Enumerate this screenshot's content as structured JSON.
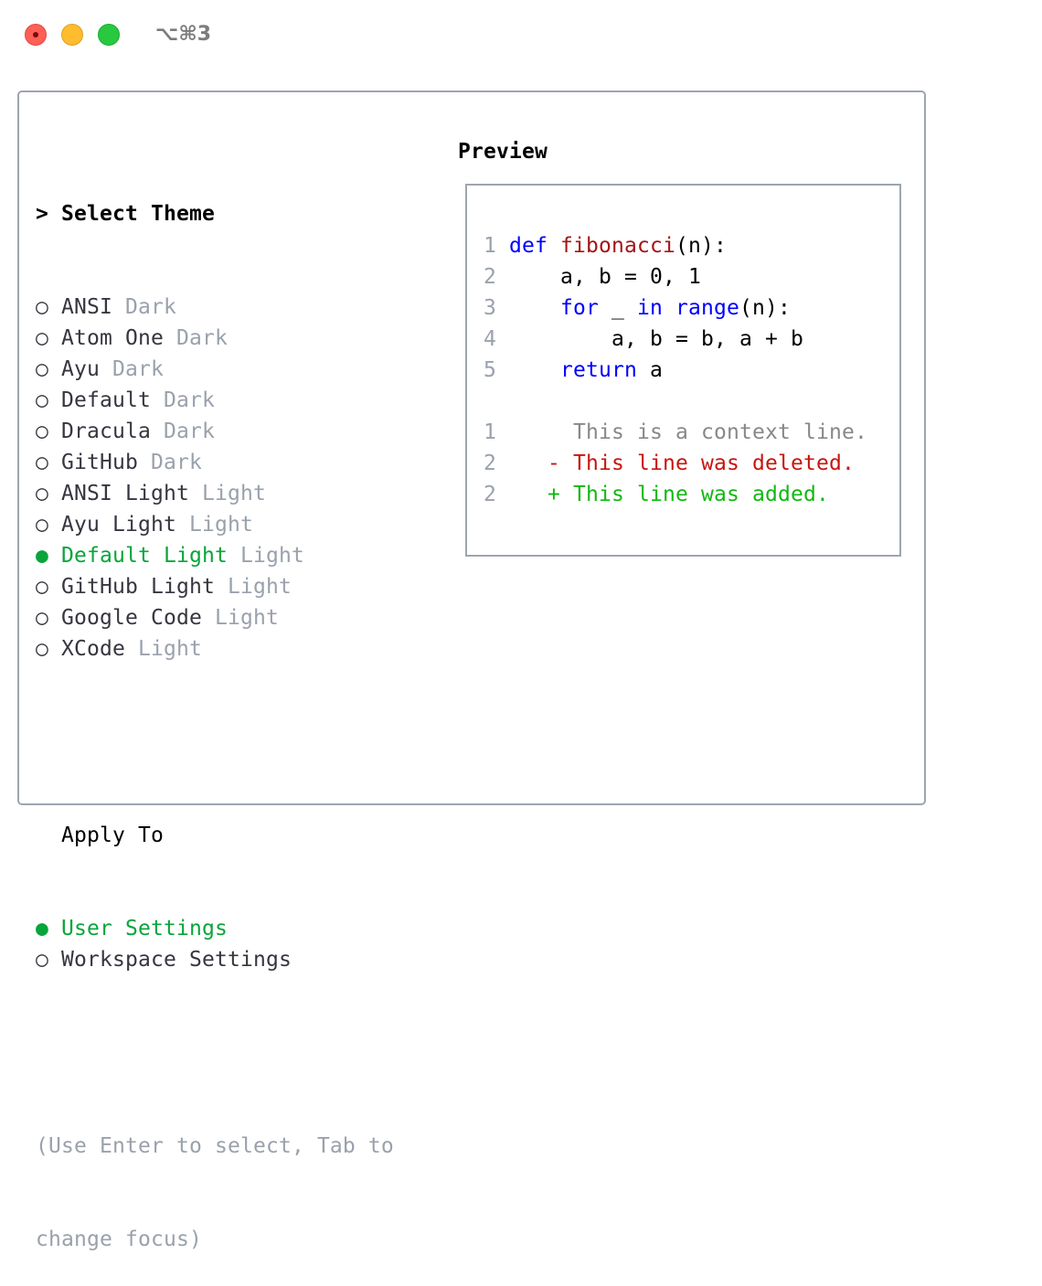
{
  "window": {
    "shortcut": "⌥⌘3"
  },
  "theme_section": {
    "title": "Select Theme",
    "prompt_marker": ">",
    "items": [
      {
        "name": "ANSI",
        "type": "Dark",
        "selected": false
      },
      {
        "name": "Atom One",
        "type": "Dark",
        "selected": false
      },
      {
        "name": "Ayu",
        "type": "Dark",
        "selected": false
      },
      {
        "name": "Default",
        "type": "Dark",
        "selected": false
      },
      {
        "name": "Dracula",
        "type": "Dark",
        "selected": false
      },
      {
        "name": "GitHub",
        "type": "Dark",
        "selected": false
      },
      {
        "name": "ANSI Light",
        "type": "Light",
        "selected": false
      },
      {
        "name": "Ayu Light",
        "type": "Light",
        "selected": false
      },
      {
        "name": "Default Light",
        "type": "Light",
        "selected": true
      },
      {
        "name": "GitHub Light",
        "type": "Light",
        "selected": false
      },
      {
        "name": "Google Code",
        "type": "Light",
        "selected": false
      },
      {
        "name": "XCode",
        "type": "Light",
        "selected": false
      }
    ]
  },
  "apply_section": {
    "title": "Apply To",
    "items": [
      {
        "name": "User Settings",
        "selected": true
      },
      {
        "name": "Workspace Settings",
        "selected": false
      }
    ]
  },
  "hint": [
    "(Use Enter to select, Tab to",
    "change focus)"
  ],
  "preview": {
    "title": "Preview",
    "code_lines": [
      {
        "num": "1",
        "tokens": [
          {
            "t": "def",
            "k": "kw"
          },
          {
            "t": " "
          },
          {
            "t": "fibonacci",
            "k": "fn"
          },
          {
            "t": "(n):"
          }
        ]
      },
      {
        "num": "2",
        "tokens": [
          {
            "t": "    a, b = 0, 1"
          }
        ]
      },
      {
        "num": "3",
        "tokens": [
          {
            "t": "    "
          },
          {
            "t": "for",
            "k": "kw"
          },
          {
            "t": " _ "
          },
          {
            "t": "in",
            "k": "kw"
          },
          {
            "t": " "
          },
          {
            "t": "range",
            "k": "kw"
          },
          {
            "t": "(n):"
          }
        ]
      },
      {
        "num": "4",
        "tokens": [
          {
            "t": "        a, b = b, a + b"
          }
        ]
      },
      {
        "num": "5",
        "tokens": [
          {
            "t": "    "
          },
          {
            "t": "return",
            "k": "kw"
          },
          {
            "t": " a"
          }
        ]
      }
    ],
    "diff_lines": [
      {
        "num": "1",
        "marker": " ",
        "text": "This is a context line.",
        "kind": "ctx"
      },
      {
        "num": "2",
        "marker": "-",
        "text": "This line was deleted.",
        "kind": "del"
      },
      {
        "num": "2",
        "marker": "+",
        "text": "This line was added.",
        "kind": "add"
      }
    ]
  },
  "colors": {
    "selected": "#08a53a",
    "muted": "#9aa1ac",
    "keyword": "#0000ff",
    "function": "#a31515",
    "deleted": "#c8150f",
    "added": "#12b812"
  },
  "icons": {
    "unselected": "radio-empty-icon",
    "selected": "radio-filled-icon"
  }
}
